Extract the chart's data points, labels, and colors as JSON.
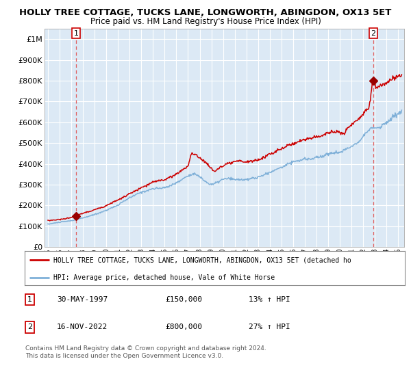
{
  "title": "HOLLY TREE COTTAGE, TUCKS LANE, LONGWORTH, ABINGDON, OX13 5ET",
  "subtitle": "Price paid vs. HM Land Registry's House Price Index (HPI)",
  "title_fontsize": 9.5,
  "subtitle_fontsize": 8.5,
  "plot_bg_color": "#dce9f5",
  "grid_color": "#ffffff",
  "red_line_color": "#cc0000",
  "blue_line_color": "#7fb0d8",
  "marker_color": "#990000",
  "dashed_line_color": "#e06060",
  "ylim": [
    0,
    1050000
  ],
  "xlim_start": 1994.7,
  "xlim_end": 2025.5,
  "yticks": [
    0,
    100000,
    200000,
    300000,
    400000,
    500000,
    600000,
    700000,
    800000,
    900000,
    1000000
  ],
  "ytick_labels": [
    "£0",
    "£100K",
    "£200K",
    "£300K",
    "£400K",
    "£500K",
    "£600K",
    "£700K",
    "£800K",
    "£900K",
    "£1M"
  ],
  "xticks": [
    1995,
    1996,
    1997,
    1998,
    1999,
    2000,
    2001,
    2002,
    2003,
    2004,
    2005,
    2006,
    2007,
    2008,
    2009,
    2010,
    2011,
    2012,
    2013,
    2014,
    2015,
    2016,
    2017,
    2018,
    2019,
    2020,
    2021,
    2022,
    2023,
    2024,
    2025
  ],
  "sale1_x": 1997.415,
  "sale1_y": 150000,
  "sale1_label": "1",
  "sale1_date": "30-MAY-1997",
  "sale1_price": "£150,000",
  "sale1_hpi": "13% ↑ HPI",
  "sale2_x": 2022.877,
  "sale2_y": 800000,
  "sale2_label": "2",
  "sale2_date": "16-NOV-2022",
  "sale2_price": "£800,000",
  "sale2_hpi": "27% ↑ HPI",
  "legend_red": "HOLLY TREE COTTAGE, TUCKS LANE, LONGWORTH, ABINGDON, OX13 5ET (detached ho",
  "legend_blue": "HPI: Average price, detached house, Vale of White Horse",
  "footer": "Contains HM Land Registry data © Crown copyright and database right 2024.\nThis data is licensed under the Open Government Licence v3.0."
}
